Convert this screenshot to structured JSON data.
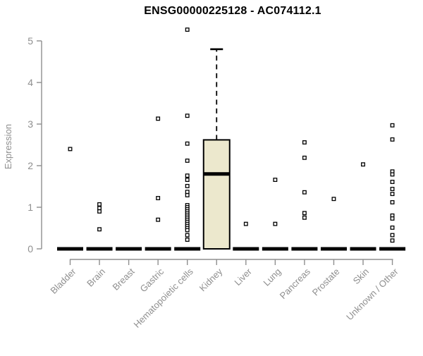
{
  "title": "ENSG00000225128 - AC074112.1",
  "chart_data": {
    "type": "boxplot",
    "title": "ENSG00000225128 - AC074112.1",
    "xlabel": "",
    "ylabel": "Expression",
    "ylim": [
      0,
      5
    ],
    "yticks": [
      0,
      1,
      2,
      3,
      4,
      5
    ],
    "grid": false,
    "legend": "none",
    "categories": [
      "Bladder",
      "Brain",
      "Breast",
      "Gastric",
      "Hematopoietic cells",
      "Kidney",
      "Liver",
      "Lung",
      "Pancreas",
      "Prostate",
      "Skin",
      "Unknown / Other"
    ],
    "boxes": [
      {
        "category": "Bladder",
        "q1": 0,
        "median": 0,
        "q3": 0,
        "whisker_low": 0,
        "whisker_high": 0,
        "outliers": [
          2.4
        ]
      },
      {
        "category": "Brain",
        "q1": 0,
        "median": 0,
        "q3": 0,
        "whisker_low": 0,
        "whisker_high": 0,
        "outliers": [
          1.07,
          0.98,
          0.9,
          0.47
        ]
      },
      {
        "category": "Breast",
        "q1": 0,
        "median": 0,
        "q3": 0,
        "whisker_low": 0,
        "whisker_high": 0,
        "outliers": []
      },
      {
        "category": "Gastric",
        "q1": 0,
        "median": 0,
        "q3": 0,
        "whisker_low": 0,
        "whisker_high": 0,
        "outliers": [
          3.13,
          1.22,
          0.7
        ]
      },
      {
        "category": "Hematopoietic cells",
        "q1": 0,
        "median": 0,
        "q3": 0,
        "whisker_low": 0,
        "whisker_high": 0,
        "outliers": [
          5.27,
          3.2,
          2.53,
          2.12,
          1.76,
          1.66,
          1.51,
          1.37,
          1.29,
          1.05,
          1.0,
          0.95,
          0.9,
          0.85,
          0.8,
          0.75,
          0.7,
          0.65,
          0.6,
          0.55,
          0.5,
          0.45,
          0.33,
          0.22
        ]
      },
      {
        "category": "Kidney",
        "q1": 0,
        "median": 1.8,
        "q3": 2.62,
        "whisker_low": 0,
        "whisker_high": 4.8,
        "outliers": []
      },
      {
        "category": "Liver",
        "q1": 0,
        "median": 0,
        "q3": 0,
        "whisker_low": 0,
        "whisker_high": 0,
        "outliers": [
          0.6
        ]
      },
      {
        "category": "Lung",
        "q1": 0,
        "median": 0,
        "q3": 0,
        "whisker_low": 0,
        "whisker_high": 0,
        "outliers": [
          1.66,
          0.6
        ]
      },
      {
        "category": "Pancreas",
        "q1": 0,
        "median": 0,
        "q3": 0,
        "whisker_low": 0,
        "whisker_high": 0,
        "outliers": [
          2.56,
          2.19,
          1.36,
          0.86,
          0.75
        ]
      },
      {
        "category": "Prostate",
        "q1": 0,
        "median": 0,
        "q3": 0,
        "whisker_low": 0,
        "whisker_high": 0,
        "outliers": [
          1.2
        ]
      },
      {
        "category": "Skin",
        "q1": 0,
        "median": 0,
        "q3": 0,
        "whisker_low": 0,
        "whisker_high": 0,
        "outliers": [
          2.03
        ]
      },
      {
        "category": "Unknown / Other",
        "q1": 0,
        "median": 0,
        "q3": 0,
        "whisker_low": 0,
        "whisker_high": 0,
        "outliers": [
          2.97,
          2.63,
          1.86,
          1.79,
          1.61,
          1.44,
          1.32,
          1.12,
          0.8,
          0.73,
          0.51,
          0.33,
          0.2
        ]
      }
    ],
    "colors": {
      "box_fill": "#ece8cd",
      "box_border": "#000000",
      "median": "#000000",
      "outlier_border": "#000000",
      "outlier_fill": "#ffffff",
      "axis": "#8f8f8f",
      "title_text": "#000000",
      "background": "#ffffff"
    }
  }
}
